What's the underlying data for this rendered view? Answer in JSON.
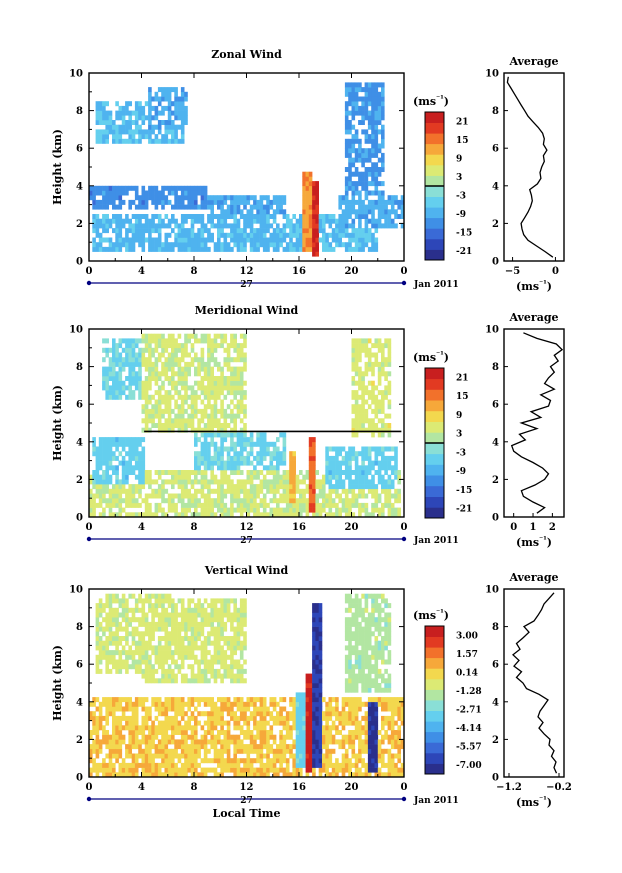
{
  "colors": {
    "ramp": [
      "#2a2f8c",
      "#2d46b8",
      "#3a6ad6",
      "#3f8fe6",
      "#4fb3ef",
      "#64cfee",
      "#8adfd6",
      "#b2e6a2",
      "#dcea74",
      "#f3d84e",
      "#f6a83a",
      "#f2712b",
      "#e23a22",
      "#c81f1f"
    ],
    "axis": "#000000",
    "time_bar": "#000080"
  },
  "chart_data": [
    {
      "type": "heatmap",
      "title": "Zonal Wind",
      "ylabel": "Height (km)",
      "xlim": [
        0,
        24
      ],
      "ylim": [
        0,
        10
      ],
      "x_ticks": [
        "0",
        "4",
        "8",
        "12",
        "16",
        "20",
        "0"
      ],
      "y_ticks": [
        "0",
        "2",
        "4",
        "6",
        "8",
        "10"
      ],
      "date_label": "27",
      "month_label": "Jan 2011",
      "colorbar": {
        "unit": "(ms⁻¹)",
        "labels": [
          "21",
          "15",
          "9",
          "3",
          "-3",
          "-9",
          "-15",
          "-21"
        ],
        "range": [
          -24,
          24
        ],
        "zero_line": true
      },
      "average": {
        "title": "Average",
        "xlim": [
          -6,
          1
        ],
        "x_ticks": [
          "-5",
          "0"
        ],
        "xlabel": "(ms⁻¹)",
        "y_ticks": [
          "0",
          "2",
          "4",
          "6",
          "8",
          "10"
        ],
        "height": [
          0.2,
          0.5,
          0.8,
          1.1,
          1.4,
          1.7,
          2.0,
          2.3,
          2.6,
          2.9,
          3.2,
          3.5,
          3.8,
          4.1,
          4.4,
          4.7,
          5.0,
          5.3,
          5.6,
          5.9,
          6.2,
          6.5,
          6.8,
          7.1,
          7.4,
          7.7,
          8.0,
          8.3,
          8.6,
          8.9,
          9.2,
          9.5,
          9.8
        ],
        "values": [
          -0.3,
          -1.2,
          -2.2,
          -3.2,
          -3.7,
          -3.9,
          -4.0,
          -3.6,
          -3.2,
          -2.9,
          -2.7,
          -2.8,
          -3.0,
          -2.1,
          -1.7,
          -1.8,
          -1.6,
          -1.3,
          -1.4,
          -1.0,
          -1.4,
          -1.3,
          -1.5,
          -2.0,
          -2.6,
          -3.2,
          -3.6,
          -4.0,
          -4.4,
          -4.8,
          -5.2,
          -5.6,
          -5.5
        ]
      },
      "features": [
        {
          "t0": 0.3,
          "t1": 15.0,
          "h0": 0.4,
          "h1": 2.6,
          "v": -8
        },
        {
          "t0": 0.0,
          "t1": 9.0,
          "h0": 2.8,
          "h1": 4.0,
          "v": -12
        },
        {
          "t0": 9.0,
          "t1": 15.0,
          "h0": 2.6,
          "h1": 3.6,
          "v": -9
        },
        {
          "t0": 0.6,
          "t1": 7.2,
          "h0": 6.2,
          "h1": 8.6,
          "v": -7
        },
        {
          "t0": 4.5,
          "t1": 7.5,
          "h0": 7.0,
          "h1": 9.2,
          "v": -9
        },
        {
          "t0": 15.0,
          "t1": 22.0,
          "h0": 0.6,
          "h1": 2.6,
          "v": -7
        },
        {
          "t0": 19.0,
          "t1": 24.0,
          "h0": 1.8,
          "h1": 3.4,
          "v": -9
        },
        {
          "t0": 19.6,
          "t1": 22.5,
          "h0": 3.5,
          "h1": 9.6,
          "v": -11
        },
        {
          "t0": 16.3,
          "t1": 16.9,
          "h0": 0.4,
          "h1": 4.8,
          "v": 13
        },
        {
          "t0": 16.9,
          "t1": 17.4,
          "h0": 0.2,
          "h1": 4.2,
          "v": 21
        }
      ]
    },
    {
      "type": "heatmap",
      "title": "Meridional Wind",
      "ylabel": "Height (km)",
      "xlim": [
        0,
        24
      ],
      "ylim": [
        0,
        10
      ],
      "x_ticks": [
        "0",
        "4",
        "8",
        "12",
        "16",
        "20",
        "0"
      ],
      "y_ticks": [
        "0",
        "2",
        "4",
        "6",
        "8",
        "10"
      ],
      "date_label": "27",
      "month_label": "Jan 2011",
      "colorbar": {
        "unit": "(ms⁻¹)",
        "labels": [
          "21",
          "15",
          "9",
          "3",
          "-3",
          "-9",
          "-15",
          "-21"
        ],
        "range": [
          -24,
          24
        ],
        "zero_line": true
      },
      "average": {
        "title": "Average",
        "xlim": [
          -0.5,
          2.6
        ],
        "x_ticks": [
          "0",
          "1",
          "2"
        ],
        "xlabel": "(ms⁻¹)",
        "y_ticks": [
          "0",
          "2",
          "4",
          "6",
          "8",
          "10"
        ],
        "height": [
          0.2,
          0.5,
          0.8,
          1.1,
          1.4,
          1.7,
          2.0,
          2.3,
          2.6,
          2.9,
          3.2,
          3.5,
          3.8,
          4.1,
          4.4,
          4.7,
          5.0,
          5.3,
          5.6,
          5.9,
          6.2,
          6.5,
          6.8,
          7.1,
          7.4,
          7.7,
          8.0,
          8.3,
          8.6,
          8.9,
          9.2,
          9.5,
          9.8
        ],
        "values": [
          1.2,
          1.6,
          1.0,
          0.5,
          0.4,
          1.1,
          1.6,
          1.8,
          1.5,
          1.0,
          0.4,
          0.0,
          -0.1,
          0.6,
          0.3,
          1.2,
          0.4,
          1.4,
          0.9,
          1.8,
          1.9,
          1.4,
          2.1,
          1.6,
          1.8,
          2.1,
          1.9,
          2.3,
          2.1,
          2.5,
          2.2,
          1.2,
          0.5
        ]
      },
      "features": [
        {
          "t0": 0.0,
          "t1": 23.8,
          "h0": 0.1,
          "h1": 2.6,
          "v": 4
        },
        {
          "t0": 0.2,
          "t1": 4.2,
          "h0": 1.8,
          "h1": 4.2,
          "v": -5
        },
        {
          "t0": 1.0,
          "t1": 4.0,
          "h0": 6.2,
          "h1": 9.4,
          "v": -4
        },
        {
          "t0": 4.0,
          "t1": 12.0,
          "h0": 4.4,
          "h1": 9.8,
          "v": 4
        },
        {
          "t0": 4.4,
          "t1": 6.2,
          "h0": 7.2,
          "h1": 8.6,
          "v": 3
        },
        {
          "t0": 8.0,
          "t1": 15.0,
          "h0": 2.4,
          "h1": 4.4,
          "v": -4
        },
        {
          "t0": 20.0,
          "t1": 23.0,
          "h0": 4.2,
          "h1": 9.6,
          "v": 5
        },
        {
          "t0": 18.0,
          "t1": 23.6,
          "h0": 1.4,
          "h1": 3.8,
          "v": -5
        },
        {
          "t0": 15.2,
          "t1": 15.8,
          "h0": 0.8,
          "h1": 3.6,
          "v": 11
        },
        {
          "t0": 16.8,
          "t1": 17.3,
          "h0": 0.3,
          "h1": 4.2,
          "v": 17
        }
      ]
    },
    {
      "type": "heatmap",
      "title": "Vertical Wind",
      "ylabel": "Height (km)",
      "xlabel": "Local Time",
      "xlim": [
        0,
        24
      ],
      "ylim": [
        0,
        10
      ],
      "x_ticks": [
        "0",
        "4",
        "8",
        "12",
        "16",
        "20",
        "0"
      ],
      "y_ticks": [
        "0",
        "2",
        "4",
        "6",
        "8",
        "10"
      ],
      "date_label": "27",
      "month_label": "Jan 2011",
      "colorbar": {
        "unit": "(ms⁻¹)",
        "labels": [
          "3.00",
          "1.57",
          "0.14",
          "-1.28",
          "-2.71",
          "-4.14",
          "-5.57",
          "-7.00"
        ],
        "range": [
          -7.7,
          3.7
        ],
        "zero_line": false
      },
      "average": {
        "title": "Average",
        "xlim": [
          -1.3,
          -0.1
        ],
        "x_ticks": [
          "-1.2",
          "-0.2"
        ],
        "xlabel": "(ms⁻¹)",
        "y_ticks": [
          "0",
          "2",
          "4",
          "6",
          "8",
          "10"
        ],
        "height": [
          0.2,
          0.5,
          0.8,
          1.1,
          1.4,
          1.7,
          2.0,
          2.3,
          2.6,
          2.9,
          3.2,
          3.5,
          3.8,
          4.1,
          4.4,
          4.7,
          5.0,
          5.3,
          5.6,
          5.9,
          6.2,
          6.5,
          6.8,
          7.1,
          7.4,
          7.7,
          8.0,
          8.3,
          8.6,
          8.9,
          9.2,
          9.5,
          9.8
        ],
        "values": [
          -0.25,
          -0.3,
          -0.26,
          -0.35,
          -0.3,
          -0.4,
          -0.38,
          -0.5,
          -0.6,
          -0.52,
          -0.62,
          -0.58,
          -0.5,
          -0.42,
          -0.6,
          -0.85,
          -0.92,
          -1.05,
          -0.95,
          -1.1,
          -1.0,
          -1.12,
          -0.98,
          -1.05,
          -0.92,
          -0.8,
          -0.9,
          -0.7,
          -0.62,
          -0.55,
          -0.5,
          -0.4,
          -0.3
        ]
      },
      "features": [
        {
          "t0": 0.0,
          "t1": 24.0,
          "h0": 0.1,
          "h1": 4.2,
          "v": 0.3
        },
        {
          "t0": 0.4,
          "t1": 6.2,
          "h0": 5.5,
          "h1": 9.8,
          "v": -1.0
        },
        {
          "t0": 4.0,
          "t1": 12.0,
          "h0": 5.0,
          "h1": 9.6,
          "v": -0.9
        },
        {
          "t0": 19.6,
          "t1": 23.0,
          "h0": 4.5,
          "h1": 9.8,
          "v": -1.6
        },
        {
          "t0": 15.8,
          "t1": 16.6,
          "h0": 0.6,
          "h1": 4.6,
          "v": -3.2
        },
        {
          "t0": 16.6,
          "t1": 17.0,
          "h0": 0.2,
          "h1": 5.4,
          "v": 3.2
        },
        {
          "t0": 17.0,
          "t1": 17.7,
          "h0": 0.4,
          "h1": 9.2,
          "v": -6.8
        },
        {
          "t0": 21.3,
          "t1": 22.1,
          "h0": 0.3,
          "h1": 4.0,
          "v": -7.0
        }
      ]
    }
  ]
}
